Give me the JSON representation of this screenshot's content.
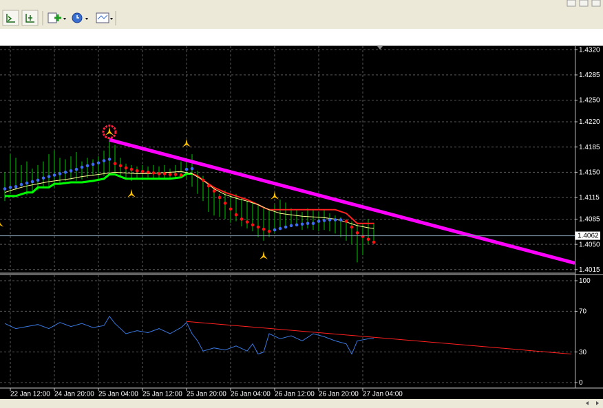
{
  "chart_data": [
    {
      "type": "ohlc",
      "ylim": [
        1.4011,
        1.4325
      ],
      "yticks": [
        {
          "value": 1.432,
          "label": "1.4320"
        },
        1.4285,
        {
          "value": 1.425,
          "label": "1.4250"
        },
        {
          "value": 1.422,
          "label": "1.4220"
        },
        1.4185,
        {
          "value": 1.415,
          "label": "1.4150"
        },
        1.4115,
        1.4085,
        {
          "value": 1.405,
          "label": "1.4050"
        },
        1.4015
      ],
      "xlim": [
        -0.875,
        103.5
      ],
      "grid": true,
      "bar_color": "#00c800",
      "high": [
        1.415,
        1.4175,
        1.417,
        1.416,
        1.4165,
        1.4155,
        1.416,
        1.4165,
        1.4175,
        1.418,
        1.417,
        1.4168,
        1.4172,
        1.4178,
        1.4165,
        1.417,
        1.4168,
        1.4172,
        1.418,
        1.4198,
        1.4188,
        1.417,
        1.4162,
        1.416,
        1.4158,
        1.416,
        1.4158,
        1.416,
        1.4158,
        1.416,
        1.4155,
        1.416,
        1.4165,
        1.417,
        1.4175,
        1.4152,
        1.4145,
        1.4135,
        1.4128,
        1.412,
        1.4125,
        1.4118,
        1.412,
        1.4115,
        1.411,
        1.4108,
        1.4105,
        1.41,
        1.4098,
        1.4105,
        1.4112,
        1.4108,
        1.41,
        1.4098,
        1.4095,
        1.41,
        1.4098,
        1.4095,
        1.4098,
        1.4093,
        1.409,
        1.4088,
        1.4085,
        1.4082,
        1.408,
        1.4078,
        1.4085,
        1.408
      ],
      "low": [
        1.411,
        1.412,
        1.4125,
        1.413,
        1.4118,
        1.4122,
        1.4125,
        1.4128,
        1.413,
        1.4128,
        1.4135,
        1.4138,
        1.414,
        1.4138,
        1.414,
        1.4142,
        1.4145,
        1.414,
        1.4145,
        1.415,
        1.415,
        1.4145,
        1.414,
        1.4138,
        1.4142,
        1.414,
        1.4143,
        1.414,
        1.4142,
        1.414,
        1.414,
        1.4142,
        1.4145,
        1.414,
        1.413,
        1.412,
        1.411,
        1.4095,
        1.409,
        1.4088,
        1.4085,
        1.408,
        1.4082,
        1.4075,
        1.4072,
        1.4068,
        1.406,
        1.4055,
        1.406,
        1.4065,
        1.407,
        1.4072,
        1.4075,
        1.4078,
        1.407,
        1.4072,
        1.407,
        1.4068,
        1.407,
        1.4068,
        1.4065,
        1.406,
        1.4055,
        1.405,
        1.4025,
        1.4035,
        1.405,
        1.4052
      ],
      "current_price": 1.4062,
      "current_color": "#7f98b0",
      "lines": [
        {
          "color": "#00ff00",
          "width": 3,
          "x": [
            0,
            2,
            4,
            5,
            6,
            8,
            9,
            10,
            12,
            14,
            16,
            18,
            19,
            20,
            22,
            24,
            26,
            28,
            30,
            32,
            33,
            34
          ],
          "values": [
            1.4117,
            1.4117,
            1.4122,
            1.4122,
            1.4129,
            1.4129,
            1.4134,
            1.4134,
            1.4136,
            1.4136,
            1.4138,
            1.4141,
            1.4147,
            1.4147,
            1.4141,
            1.4141,
            1.4141,
            1.4141,
            1.4141,
            1.4143,
            1.4148,
            1.4148
          ]
        },
        {
          "color": "#ff2020",
          "width": 2,
          "x": [
            34,
            35,
            36,
            38,
            40,
            42,
            44,
            46,
            47,
            48,
            50,
            52,
            56,
            60,
            62,
            63,
            64,
            67
          ],
          "values": [
            1.4148,
            1.4145,
            1.4139,
            1.4129,
            1.4122,
            1.4117,
            1.4112,
            1.4105,
            1.4101,
            1.4098,
            1.4098,
            1.4098,
            1.4098,
            1.4098,
            1.4093,
            1.4086,
            1.4079,
            1.4079
          ]
        },
        {
          "color": "#ffff90",
          "width": 1,
          "x": [
            0,
            2,
            4,
            6,
            8,
            10,
            12,
            14,
            16,
            18,
            20,
            22,
            24,
            26,
            28,
            30,
            32,
            34,
            36,
            38,
            40,
            42,
            44,
            46,
            48,
            50,
            52,
            54,
            56,
            58,
            60,
            62,
            64,
            66,
            67
          ],
          "values": [
            1.4122,
            1.4127,
            1.4131,
            1.4134,
            1.4137,
            1.4139,
            1.4141,
            1.4144,
            1.4146,
            1.4148,
            1.415,
            1.4149,
            1.4148,
            1.4148,
            1.4149,
            1.415,
            1.4151,
            1.4148,
            1.4139,
            1.4127,
            1.4119,
            1.4114,
            1.411,
            1.4105,
            1.4098,
            1.4093,
            1.4091,
            1.4089,
            1.4088,
            1.4087,
            1.4085,
            1.4081,
            1.4076,
            1.4073,
            1.4072
          ]
        }
      ],
      "dots": [
        {
          "color": "#3c6cf0",
          "x": [
            0,
            1,
            2,
            3,
            4,
            5,
            6,
            7,
            8,
            9,
            10,
            11,
            12,
            13,
            14,
            15,
            16,
            17,
            18,
            19,
            33,
            34,
            49,
            50,
            51,
            52,
            53,
            54,
            55,
            56,
            57,
            58,
            59,
            60,
            61
          ],
          "values": [
            1.4127,
            1.4129,
            1.413,
            1.4133,
            1.4135,
            1.4137,
            1.4139,
            1.4142,
            1.4144,
            1.4146,
            1.4148,
            1.415,
            1.4152,
            1.4154,
            1.4157,
            1.4159,
            1.4161,
            1.4163,
            1.4166,
            1.4168,
            1.4154,
            1.4155,
            1.407,
            1.4072,
            1.4074,
            1.4076,
            1.4077,
            1.4078,
            1.4079,
            1.4079,
            1.4082,
            1.4083,
            1.4084,
            1.4084,
            1.4084
          ]
        },
        {
          "color": "#ff1010",
          "x": [
            20,
            21,
            22,
            23,
            24,
            25,
            26,
            27,
            28,
            29,
            30,
            31,
            32,
            36,
            37,
            38,
            39,
            40,
            41,
            42,
            43,
            44,
            45,
            46,
            47,
            48,
            62,
            63,
            64,
            65,
            66,
            67
          ],
          "values": [
            1.4162,
            1.4159,
            1.4156,
            1.4154,
            1.4152,
            1.4151,
            1.415,
            1.4149,
            1.4148,
            1.4148,
            1.4147,
            1.4147,
            1.4146,
            1.4139,
            1.4131,
            1.4124,
            1.4115,
            1.4107,
            1.4099,
            1.4091,
            1.4085,
            1.4081,
            1.4077,
            1.4074,
            1.4071,
            1.4068,
            1.4082,
            1.4074,
            1.4066,
            1.4061,
            1.4057,
            1.4053
          ]
        }
      ],
      "fractals": {
        "color": "#ffc000",
        "x": [
          -1,
          19,
          23,
          33,
          47,
          49
        ],
        "values": [
          1.4079,
          1.4206,
          1.412,
          1.419,
          1.4034,
          1.4117
        ]
      },
      "signal": {
        "color": "#ff2040",
        "x": 19,
        "value": 1.4206
      },
      "trendline": {
        "color": "#ff00ff",
        "x": [
          19,
          103.5
        ],
        "values": [
          1.4195,
          1.4024
        ]
      }
    },
    {
      "type": "line",
      "ylim": [
        -4,
        105.4
      ],
      "yticks": [
        0,
        30,
        70,
        100
      ],
      "xlim": [
        -0.875,
        103.5
      ],
      "xticks": [
        {
          "value": 1,
          "label": "22 Jan 12:00"
        },
        {
          "value": 9,
          "label": "24 Jan 20:00"
        },
        {
          "value": 17,
          "label": "25 Jan 04:00"
        },
        {
          "value": 25,
          "label": "25 Jan 12:00"
        },
        {
          "value": 33,
          "label": "25 Jan 20:00"
        },
        {
          "value": 41,
          "label": "26 Jan 04:00"
        },
        {
          "value": 49,
          "label": "26 Jan 12:00"
        },
        {
          "value": 57,
          "label": "26 Jan 20:00"
        },
        {
          "value": 65,
          "label": "27 Jan 04:00"
        }
      ],
      "grid": true,
      "color": "#3a78e0",
      "x": [
        0,
        2,
        4,
        6,
        8,
        10,
        12,
        14,
        16,
        18,
        19,
        20,
        22,
        24,
        26,
        28,
        30,
        32,
        33,
        34,
        35,
        36,
        38,
        40,
        42,
        44,
        45,
        46,
        47,
        48,
        50,
        52,
        54,
        56,
        58,
        60,
        62,
        63,
        64,
        66,
        67
      ],
      "values": [
        58,
        53,
        55,
        57,
        53,
        59,
        55,
        58,
        54,
        56,
        65,
        58,
        48,
        51,
        49,
        53,
        48,
        54,
        59,
        48,
        41,
        31,
        34,
        32,
        36,
        31,
        38,
        28,
        30,
        48,
        43,
        46,
        41,
        48,
        45,
        41,
        38,
        28,
        41,
        43,
        43
      ],
      "trendline": {
        "color": "#ff2020",
        "x": [
          33,
          102.9
        ],
        "values": [
          60,
          28
        ]
      }
    }
  ]
}
